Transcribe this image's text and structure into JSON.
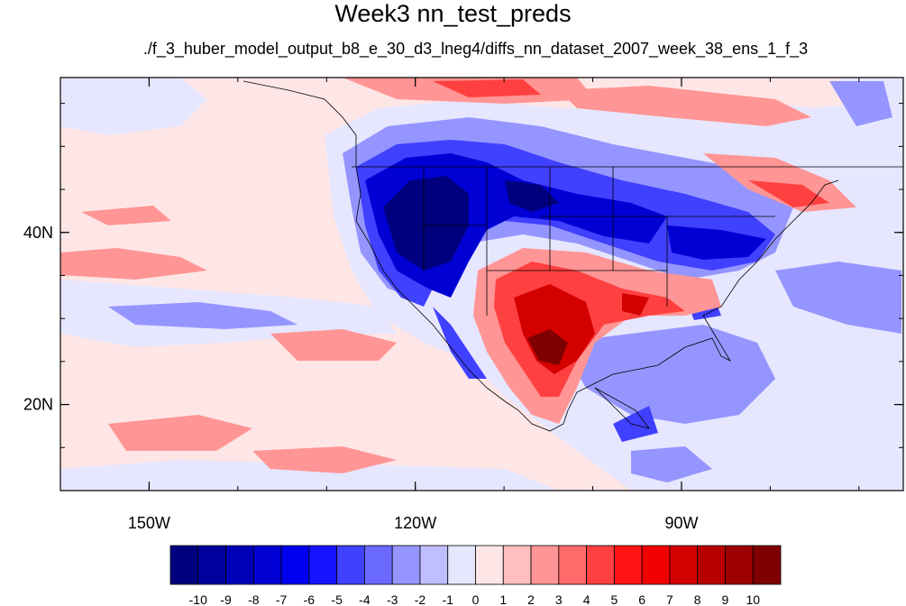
{
  "title": "Week3 nn_test_preds",
  "subtitle": "./f_3_huber_model_output_b8_e_30_d3_lneg4/diffs_nn_dataset_2007_week_38_ens_1_f_3",
  "map": {
    "lon_range": [
      -160,
      -65
    ],
    "lat_range": [
      10,
      58
    ],
    "lon_ticks": [
      {
        "value": -150,
        "label": "150W"
      },
      {
        "value": -120,
        "label": "120W"
      },
      {
        "value": -90,
        "label": "90W"
      }
    ],
    "lat_ticks": [
      {
        "value": 40,
        "label": "40N"
      },
      {
        "value": 20,
        "label": "20N"
      }
    ]
  },
  "colorbar": {
    "labels": [
      "-10",
      "-9",
      "-8",
      "-7",
      "-6",
      "-5",
      "-4",
      "-3",
      "-2",
      "-1",
      "0",
      "1",
      "2",
      "3",
      "4",
      "5",
      "6",
      "7",
      "8",
      "9",
      "10"
    ],
    "colors": [
      "#00007f",
      "#00009c",
      "#0000b8",
      "#0000d4",
      "#0000f0",
      "#1414ff",
      "#4040ff",
      "#6a6aff",
      "#9595ff",
      "#bfbfff",
      "#e6e6ff",
      "#ffe6e6",
      "#ffbfbf",
      "#ff9595",
      "#ff6a6a",
      "#ff4040",
      "#ff1414",
      "#f00000",
      "#d40000",
      "#b80000",
      "#9c0000",
      "#7f0000"
    ]
  }
}
